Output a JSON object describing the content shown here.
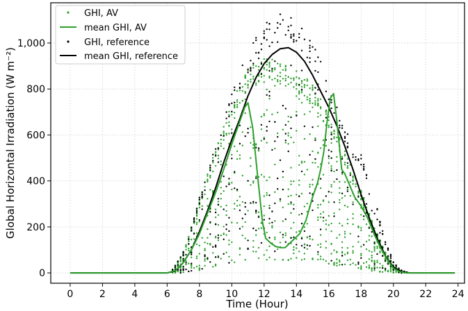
{
  "chart_data": {
    "type": "scatter",
    "xlabel": "Time (Hour)",
    "ylabel": "Global Horizontal Irradiation (W m⁻²)",
    "xlim": [
      -1.2,
      24.4
    ],
    "ylim": [
      -45,
      1175
    ],
    "x_ticks": [
      0,
      2,
      4,
      6,
      8,
      10,
      12,
      14,
      16,
      18,
      20,
      22,
      24
    ],
    "y_ticks": [
      0,
      200,
      400,
      600,
      800,
      1000
    ],
    "y_tick_labels": [
      "0",
      "200",
      "400",
      "600",
      "800",
      "1,000"
    ],
    "grid": true,
    "legend_position": "top-left",
    "colors": {
      "av": "#2ca02c",
      "reference": "#000000"
    },
    "legend": [
      {
        "label": "GHI, AV",
        "kind": "marker",
        "series": "av"
      },
      {
        "label": "mean GHI, AV",
        "kind": "line",
        "series": "av"
      },
      {
        "label": "GHI, reference",
        "kind": "marker",
        "series": "reference"
      },
      {
        "label": "mean GHI, reference",
        "kind": "line",
        "series": "reference"
      }
    ],
    "series": [
      {
        "name": "mean GHI, AV",
        "style": "line",
        "color": "#2ca02c",
        "x": [
          0,
          6.0,
          6.5,
          7.0,
          7.5,
          8.0,
          8.5,
          9.0,
          9.5,
          10.0,
          10.5,
          10.8,
          11.0,
          11.3,
          11.6,
          11.9,
          12.1,
          12.4,
          12.7,
          13.0,
          13.3,
          13.6,
          13.9,
          14.2,
          14.6,
          15.0,
          15.3,
          15.5,
          15.7,
          15.9,
          16.1,
          16.3,
          16.5,
          16.8,
          17.0,
          17.3,
          17.6,
          18.0,
          18.4,
          18.8,
          19.2,
          19.6,
          20.0,
          20.4,
          20.8,
          21.2,
          23.8
        ],
        "y": [
          0,
          0,
          10,
          45,
          100,
          170,
          260,
          350,
          450,
          560,
          660,
          720,
          740,
          630,
          420,
          220,
          150,
          130,
          115,
          110,
          110,
          130,
          150,
          170,
          230,
          330,
          390,
          450,
          530,
          660,
          760,
          780,
          660,
          450,
          430,
          380,
          330,
          290,
          240,
          170,
          110,
          60,
          20,
          5,
          0,
          0,
          0
        ]
      },
      {
        "name": "mean GHI, reference",
        "style": "line",
        "color": "#000000",
        "x": [
          0,
          6.0,
          6.5,
          7.0,
          7.5,
          8.0,
          8.5,
          9.0,
          9.5,
          10.0,
          10.5,
          11.0,
          11.5,
          12.0,
          12.5,
          13.0,
          13.5,
          14.0,
          14.5,
          15.0,
          15.5,
          16.0,
          16.5,
          17.0,
          17.5,
          18.0,
          18.5,
          19.0,
          19.5,
          20.0,
          20.5,
          21.0,
          23.8
        ],
        "y": [
          0,
          0,
          8,
          45,
          100,
          180,
          270,
          370,
          480,
          580,
          670,
          770,
          850,
          910,
          950,
          975,
          980,
          960,
          920,
          860,
          790,
          720,
          640,
          550,
          450,
          340,
          240,
          150,
          75,
          25,
          5,
          0,
          0
        ]
      },
      {
        "name": "GHI, AV",
        "style": "scatter",
        "color": "#2ca02c",
        "envelope": {
          "hours": [
            6.3,
            6.6,
            7.0,
            7.5,
            8.0,
            8.5,
            9.0,
            9.5,
            10.0,
            10.5,
            11.0,
            11.5,
            12.0,
            12.5,
            13.0,
            13.5,
            14.0,
            14.5,
            15.0,
            15.5,
            16.0,
            16.5,
            17.0,
            17.5,
            18.0,
            18.5,
            19.0,
            19.5,
            20.0,
            20.4,
            20.8
          ],
          "min": [
            0,
            0,
            0,
            5,
            10,
            20,
            30,
            40,
            40,
            50,
            55,
            55,
            55,
            55,
            55,
            55,
            55,
            55,
            55,
            55,
            40,
            30,
            25,
            20,
            15,
            10,
            5,
            3,
            0,
            0,
            0
          ],
          "max": [
            10,
            40,
            90,
            200,
            320,
            430,
            540,
            640,
            740,
            820,
            880,
            920,
            930,
            940,
            920,
            900,
            880,
            860,
            820,
            760,
            700,
            620,
            530,
            450,
            360,
            260,
            170,
            90,
            35,
            12,
            3
          ]
        }
      },
      {
        "name": "GHI, reference",
        "style": "scatter",
        "color": "#000000",
        "envelope": {
          "hours": [
            6.3,
            6.6,
            7.0,
            7.5,
            8.0,
            8.5,
            9.0,
            9.5,
            10.0,
            10.5,
            11.0,
            11.5,
            12.0,
            12.5,
            13.0,
            13.5,
            14.0,
            14.5,
            15.0,
            15.5,
            16.0,
            16.5,
            17.0,
            17.5,
            18.0,
            18.5,
            19.0,
            19.5,
            20.0,
            20.4,
            20.8
          ],
          "min": [
            0,
            0,
            0,
            5,
            10,
            20,
            30,
            40,
            40,
            50,
            60,
            70,
            80,
            90,
            100,
            120,
            120,
            110,
            90,
            70,
            50,
            40,
            30,
            20,
            15,
            10,
            5,
            3,
            0,
            0,
            0
          ],
          "max": [
            12,
            45,
            100,
            210,
            330,
            440,
            560,
            670,
            790,
            880,
            960,
            1030,
            1080,
            1110,
            1130,
            1120,
            1100,
            1060,
            1000,
            930,
            840,
            740,
            640,
            560,
            520,
            420,
            280,
            140,
            50,
            15,
            3
          ]
        }
      }
    ]
  }
}
